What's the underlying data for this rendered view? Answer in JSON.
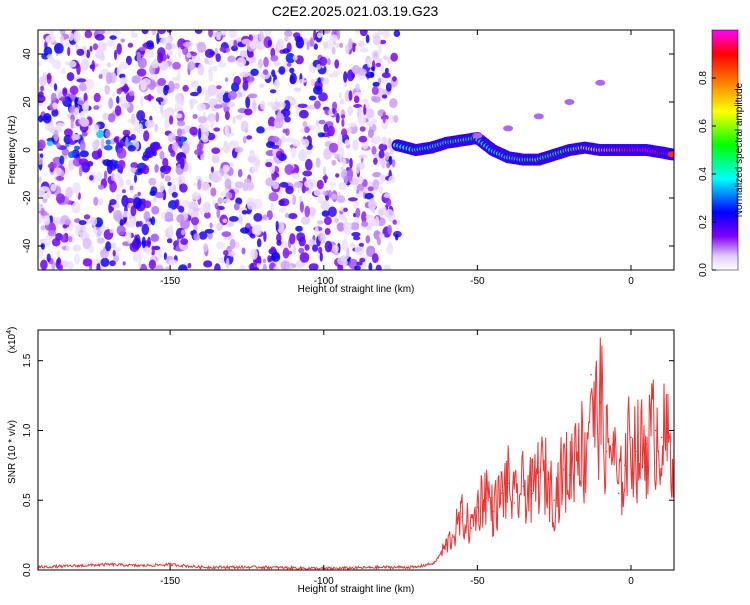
{
  "title": "C2E2.2025.021.03.19.G23",
  "chart_data": [
    {
      "type": "heatmap",
      "title": "C2E2.2025.021.03.19.G23",
      "xlabel": "Height of straight line (km)",
      "ylabel": "Frequency (Hz)",
      "xlim": [
        -193,
        14
      ],
      "ylim": [
        -50,
        50
      ],
      "xticks": [
        -150,
        -100,
        -50,
        0
      ],
      "yticks": [
        -40,
        -20,
        0,
        20,
        40
      ],
      "xtick_labels": [
        "-150",
        "-100",
        "-50",
        "0"
      ],
      "ytick_labels": [
        "-40",
        "-20",
        "0",
        "20",
        "40"
      ],
      "colorbar": {
        "label": "Normalized spectral amplitude",
        "range": [
          0,
          1
        ],
        "ticks": [
          0.0,
          0.2,
          0.4,
          0.6,
          0.8
        ],
        "tick_labels": [
          "0.0",
          "0.2",
          "0.4",
          "0.6",
          "0.8"
        ],
        "colors": [
          "#ffffff",
          "#8000ff",
          "#0000ff",
          "#00ffff",
          "#00ff00",
          "#ffff00",
          "#ff8000",
          "#ff0000",
          "#ff00ff"
        ]
      },
      "ridge": {
        "x": [
          -76,
          -70,
          -65,
          -60,
          -55,
          -50,
          -45,
          -40,
          -35,
          -30,
          -25,
          -20,
          -15,
          -10,
          -5,
          0,
          5,
          10,
          14
        ],
        "freq": [
          2,
          0,
          1,
          3,
          4,
          5,
          0,
          -3,
          -4,
          -4,
          -2,
          0,
          1,
          0,
          0,
          0,
          0,
          -1,
          -2
        ],
        "amplitude": [
          0.4,
          0.5,
          0.45,
          0.5,
          0.55,
          0.5,
          0.4,
          0.45,
          0.5,
          0.55,
          0.5,
          0.55,
          0.6,
          0.7,
          0.75,
          0.9,
          0.95,
          0.9,
          0.85
        ]
      },
      "upper_streak": {
        "x": [
          -50,
          -40,
          -30,
          -20,
          -10
        ],
        "freq": [
          6,
          9,
          14,
          20,
          28
        ]
      }
    },
    {
      "type": "line",
      "xlabel": "Height of straight line (km)",
      "ylabel": "SNR (10 * v/v)",
      "multiplier": "(x10",
      "multiplier_exp": "4",
      "multiplier_close": ")",
      "xlim": [
        -193,
        14
      ],
      "ylim": [
        0,
        1.72
      ],
      "xticks": [
        -150,
        -100,
        -50,
        0
      ],
      "yticks": [
        0.0,
        0.5,
        1.0,
        1.5
      ],
      "xtick_labels": [
        "-150",
        "-100",
        "-50",
        "0"
      ],
      "ytick_labels": [
        "0.0",
        "0.5",
        "1.0",
        "1.5"
      ],
      "color": "#ee3333",
      "series": [
        {
          "name": "SNR",
          "x": [
            -193,
            -180,
            -170,
            -160,
            -150,
            -140,
            -120,
            -100,
            -80,
            -70,
            -64,
            -60,
            -58,
            -55,
            -52,
            -50,
            -47,
            -45,
            -42,
            -40,
            -38,
            -35,
            -32,
            -30,
            -27,
            -25,
            -22,
            -20,
            -17,
            -15,
            -13,
            -12,
            -10,
            -8,
            -6,
            -4,
            -2,
            0,
            2,
            5,
            8,
            10,
            14
          ],
          "y": [
            0.02,
            0.03,
            0.04,
            0.03,
            0.04,
            0.02,
            0.02,
            0.01,
            0.02,
            0.02,
            0.05,
            0.18,
            0.25,
            0.38,
            0.3,
            0.45,
            0.58,
            0.42,
            0.55,
            0.62,
            0.48,
            0.6,
            0.55,
            0.7,
            0.65,
            0.5,
            0.72,
            0.68,
            1.0,
            0.75,
            1.4,
            1.05,
            1.2,
            0.85,
            0.9,
            0.55,
            0.75,
            0.95,
            0.85,
            0.9,
            1.0,
            0.95,
            0.85
          ]
        }
      ]
    }
  ]
}
